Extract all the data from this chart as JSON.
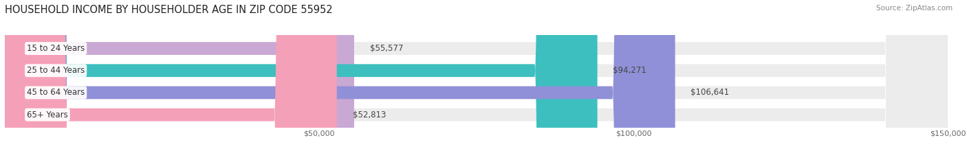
{
  "title": "HOUSEHOLD INCOME BY HOUSEHOLDER AGE IN ZIP CODE 55952",
  "source": "Source: ZipAtlas.com",
  "categories": [
    "15 to 24 Years",
    "25 to 44 Years",
    "45 to 64 Years",
    "65+ Years"
  ],
  "values": [
    55577,
    94271,
    106641,
    52813
  ],
  "bar_colors": [
    "#c9a8d4",
    "#3dbfbf",
    "#9090d8",
    "#f4a0b8"
  ],
  "bar_bg_color": "#ececec",
  "value_labels": [
    "$55,577",
    "$94,271",
    "$106,641",
    "$52,813"
  ],
  "xlim": [
    0,
    150000
  ],
  "xticks": [
    50000,
    100000,
    150000
  ],
  "xtick_labels": [
    "$50,000",
    "$100,000",
    "$150,000"
  ],
  "background_color": "#ffffff",
  "bar_height": 0.58,
  "title_fontsize": 10.5,
  "label_fontsize": 8.5,
  "tick_fontsize": 8,
  "source_fontsize": 7.5
}
